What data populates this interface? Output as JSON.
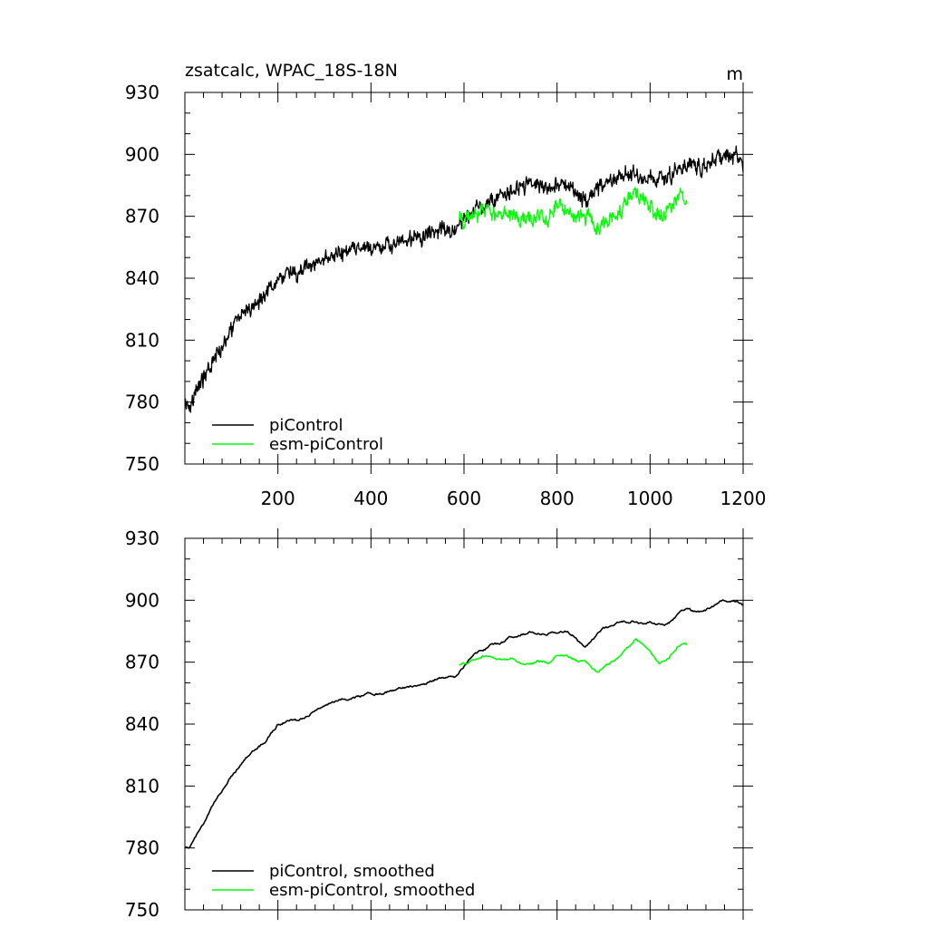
{
  "chart_data": [
    {
      "type": "line",
      "title": "zsatcalc, WPAC_18S-18N",
      "units": "m",
      "xlim": [
        0,
        1200
      ],
      "ylim": [
        750,
        930
      ],
      "x_ticks": [
        200,
        400,
        600,
        800,
        1000,
        1200
      ],
      "y_ticks": [
        750,
        780,
        810,
        840,
        870,
        900,
        930
      ],
      "legend": "bottom-left",
      "series": [
        {
          "name": "piControl",
          "color": "#000000",
          "noise": "high",
          "keypoints": [
            [
              1,
              781
            ],
            [
              10,
              779
            ],
            [
              25,
              786
            ],
            [
              40,
              791
            ],
            [
              60,
              800
            ],
            [
              80,
              808
            ],
            [
              100,
              815
            ],
            [
              120,
              821
            ],
            [
              140,
              826
            ],
            [
              160,
              830
            ],
            [
              180,
              835
            ],
            [
              200,
              840
            ],
            [
              220,
              842
            ],
            [
              240,
              843
            ],
            [
              260,
              844
            ],
            [
              280,
              847
            ],
            [
              300,
              849
            ],
            [
              340,
              852
            ],
            [
              380,
              854
            ],
            [
              420,
              855
            ],
            [
              460,
              857
            ],
            [
              500,
              859
            ],
            [
              540,
              863
            ],
            [
              580,
              864
            ],
            [
              600,
              867
            ],
            [
              620,
              873
            ],
            [
              640,
              876
            ],
            [
              660,
              878
            ],
            [
              680,
              879
            ],
            [
              700,
              882
            ],
            [
              720,
              884
            ],
            [
              740,
              885
            ],
            [
              760,
              884
            ],
            [
              780,
              884
            ],
            [
              800,
              885
            ],
            [
              820,
              885
            ],
            [
              840,
              883
            ],
            [
              850,
              880
            ],
            [
              860,
              877
            ],
            [
              880,
              882
            ],
            [
              900,
              886
            ],
            [
              920,
              888
            ],
            [
              940,
              890
            ],
            [
              960,
              890
            ],
            [
              980,
              889
            ],
            [
              1000,
              889
            ],
            [
              1020,
              888
            ],
            [
              1040,
              889
            ],
            [
              1060,
              893
            ],
            [
              1080,
              896
            ],
            [
              1100,
              894
            ],
            [
              1120,
              895
            ],
            [
              1140,
              898
            ],
            [
              1160,
              900
            ],
            [
              1180,
              900
            ],
            [
              1190,
              898
            ],
            [
              1200,
              893
            ]
          ]
        },
        {
          "name": "esm-piControl",
          "color": "#00ff00",
          "noise": "high",
          "keypoints": [
            [
              590,
              869
            ],
            [
              600,
              868
            ],
            [
              620,
              870
            ],
            [
              640,
              873
            ],
            [
              660,
              872
            ],
            [
              680,
              870
            ],
            [
              700,
              872
            ],
            [
              720,
              869
            ],
            [
              740,
              868
            ],
            [
              760,
              871
            ],
            [
              780,
              869
            ],
            [
              800,
              874
            ],
            [
              820,
              873
            ],
            [
              840,
              871
            ],
            [
              860,
              870
            ],
            [
              880,
              866
            ],
            [
              890,
              864
            ],
            [
              900,
              866
            ],
            [
              920,
              870
            ],
            [
              940,
              874
            ],
            [
              960,
              880
            ],
            [
              970,
              882
            ],
            [
              980,
              879
            ],
            [
              1000,
              876
            ],
            [
              1010,
              872
            ],
            [
              1020,
              869
            ],
            [
              1040,
              873
            ],
            [
              1060,
              879
            ],
            [
              1070,
              881
            ],
            [
              1080,
              878
            ]
          ]
        }
      ]
    },
    {
      "type": "line",
      "title": "",
      "xlim": [
        0,
        1200
      ],
      "ylim": [
        750,
        930
      ],
      "x_ticks": [
        200,
        400,
        600,
        800,
        1000,
        1200
      ],
      "y_ticks": [
        750,
        780,
        810,
        840,
        870,
        900,
        930
      ],
      "legend": "bottom-left",
      "series": [
        {
          "name": "piControl, smoothed",
          "color": "#000000",
          "noise": "low",
          "keypoints": [
            [
              1,
              781
            ],
            [
              10,
              780
            ],
            [
              25,
              786
            ],
            [
              40,
              791
            ],
            [
              60,
              800
            ],
            [
              80,
              808
            ],
            [
              100,
              815
            ],
            [
              120,
              821
            ],
            [
              140,
              826
            ],
            [
              160,
              829
            ],
            [
              180,
              834
            ],
            [
              200,
              840
            ],
            [
              220,
              842
            ],
            [
              240,
              842
            ],
            [
              260,
              844
            ],
            [
              280,
              847
            ],
            [
              300,
              849
            ],
            [
              340,
              852
            ],
            [
              380,
              854
            ],
            [
              420,
              855
            ],
            [
              460,
              857
            ],
            [
              500,
              859
            ],
            [
              540,
              862
            ],
            [
              560,
              863
            ],
            [
              580,
              863
            ],
            [
              600,
              868
            ],
            [
              620,
              874
            ],
            [
              640,
              876
            ],
            [
              660,
              878
            ],
            [
              680,
              879
            ],
            [
              700,
              882
            ],
            [
              720,
              884
            ],
            [
              740,
              885
            ],
            [
              760,
              884
            ],
            [
              780,
              884
            ],
            [
              800,
              885
            ],
            [
              820,
              885
            ],
            [
              840,
              883
            ],
            [
              850,
              880
            ],
            [
              860,
              877
            ],
            [
              880,
              882
            ],
            [
              900,
              886
            ],
            [
              920,
              888
            ],
            [
              940,
              890
            ],
            [
              960,
              890
            ],
            [
              980,
              889
            ],
            [
              1000,
              889
            ],
            [
              1020,
              888
            ],
            [
              1040,
              889
            ],
            [
              1060,
              893
            ],
            [
              1080,
              896
            ],
            [
              1100,
              894
            ],
            [
              1120,
              895
            ],
            [
              1140,
              898
            ],
            [
              1160,
              900
            ],
            [
              1180,
              900
            ],
            [
              1190,
              899
            ],
            [
              1200,
              897
            ]
          ]
        },
        {
          "name": "esm-piControl, smoothed",
          "color": "#00ff00",
          "noise": "low",
          "keypoints": [
            [
              590,
              869
            ],
            [
              600,
              869
            ],
            [
              620,
              871
            ],
            [
              640,
              873
            ],
            [
              660,
              872
            ],
            [
              680,
              871
            ],
            [
              700,
              872
            ],
            [
              720,
              870
            ],
            [
              740,
              869
            ],
            [
              760,
              871
            ],
            [
              780,
              870
            ],
            [
              800,
              873
            ],
            [
              820,
              873
            ],
            [
              840,
              871
            ],
            [
              860,
              870
            ],
            [
              880,
              866
            ],
            [
              890,
              865
            ],
            [
              900,
              867
            ],
            [
              920,
              870
            ],
            [
              940,
              874
            ],
            [
              960,
              879
            ],
            [
              970,
              882
            ],
            [
              980,
              880
            ],
            [
              1000,
              876
            ],
            [
              1010,
              872
            ],
            [
              1020,
              869
            ],
            [
              1040,
              872
            ],
            [
              1060,
              878
            ],
            [
              1070,
              880
            ],
            [
              1080,
              879
            ]
          ]
        }
      ]
    }
  ]
}
